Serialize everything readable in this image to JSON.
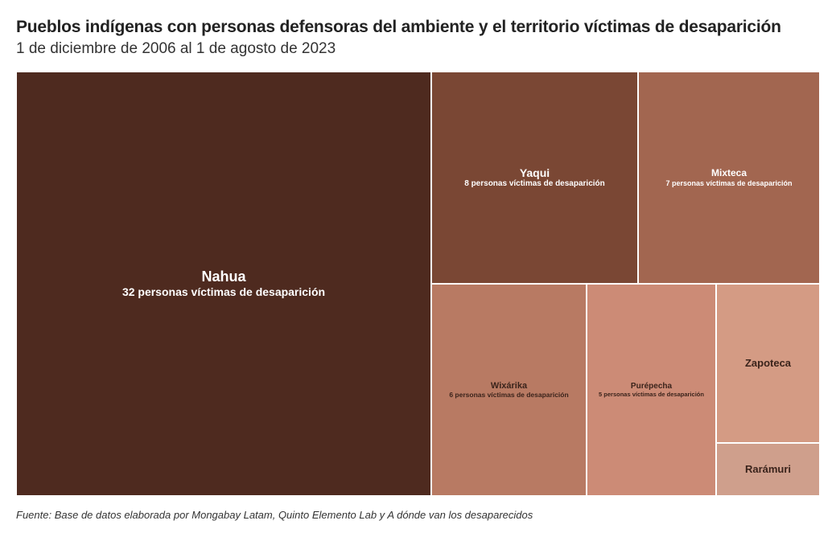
{
  "header": {
    "title": "Pueblos indígenas con personas defensoras del ambiente y el territorio víctimas de desaparición",
    "subtitle": "1 de diciembre de 2006 al 1 de agosto de 2023"
  },
  "footer": {
    "source": "Fuente: Base de datos elaborada por Mongabay Latam, Quinto Elemento Lab y A dónde van los desaparecidos"
  },
  "chart_data": {
    "type": "treemap",
    "title": "Pueblos indígenas con personas defensoras del ambiente y el territorio víctimas de desaparición",
    "subtitle": "1 de diciembre de 2006 al 1 de agosto de 2023",
    "items": [
      {
        "name": "Nahua",
        "value": 32,
        "label": "32 personas víctimas de desaparición",
        "color": "#4e2a1f",
        "text_color": "#ffffff"
      },
      {
        "name": "Yaqui",
        "value": 8,
        "label": "8 personas víctimas de desaparición",
        "color": "#7a4734",
        "text_color": "#ffffff"
      },
      {
        "name": "Mixteca",
        "value": 7,
        "label": "7 personas víctimas de desaparición",
        "color": "#a26650",
        "text_color": "#ffffff"
      },
      {
        "name": "Wixárika",
        "value": 6,
        "label": "6 personas víctimas de desaparición",
        "color": "#b87a63",
        "text_color": "#3a231b"
      },
      {
        "name": "Purépecha",
        "value": 5,
        "label": "5 personas víctimas de desaparición",
        "color": "#cc8b76",
        "text_color": "#3a231b"
      },
      {
        "name": "Zapoteca",
        "value": 4,
        "label": "",
        "color": "#d49b84",
        "text_color": "#3a231b"
      },
      {
        "name": "Rarámuri",
        "value": 1,
        "label": "",
        "color": "#cf9f8c",
        "text_color": "#3a231b"
      }
    ]
  }
}
